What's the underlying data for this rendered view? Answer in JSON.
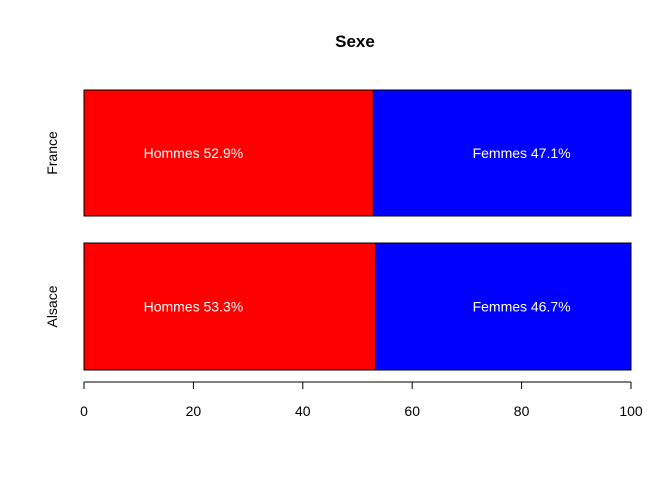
{
  "chart_data": {
    "type": "bar",
    "orientation": "horizontal",
    "stacked": true,
    "title": "Sexe",
    "xlabel": "",
    "ylabel": "",
    "xlim": [
      0,
      100
    ],
    "x_ticks": [
      0,
      20,
      40,
      60,
      80,
      100
    ],
    "x_tick_labels": [
      "0",
      "20",
      "40",
      "60",
      "80",
      "100"
    ],
    "grid": false,
    "legend": "none",
    "categories": [
      "France",
      "Alsace"
    ],
    "series": [
      {
        "color": "#ff0000",
        "values": [
          52.9,
          53.3
        ],
        "labels": [
          "Hommes 52.9%",
          "Hommes 53.3%"
        ]
      },
      {
        "color": "#0000ff",
        "values": [
          47.1,
          46.7
        ],
        "labels": [
          "Femmes 47.1%",
          "Femmes 46.7%"
        ]
      }
    ],
    "label_x_positions": [
      [
        20,
        80
      ],
      [
        20,
        80
      ]
    ]
  }
}
